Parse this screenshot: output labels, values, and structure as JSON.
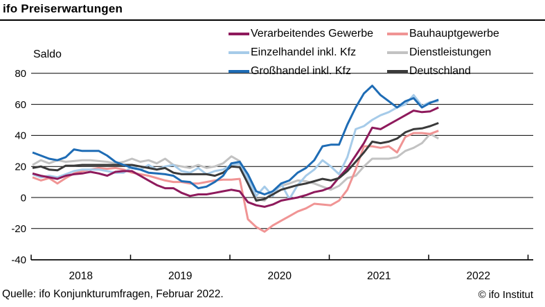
{
  "header": {
    "title": "ifo Preiserwartungen"
  },
  "axes": {
    "y_axis_label": "Saldo",
    "y_ticks": [
      80,
      60,
      40,
      20,
      0,
      -20,
      -40
    ],
    "x_ticks": [
      "2018",
      "2019",
      "2020",
      "2021",
      "2022"
    ]
  },
  "footer": {
    "source": "Quelle: ifo Konjunkturumfragen, Februar 2022.",
    "copyright": "© ifo Institut"
  },
  "chart_data": {
    "type": "line",
    "title": "ifo Preiserwartungen",
    "ylabel": "Saldo",
    "ylim": [
      -40,
      80
    ],
    "grid": true,
    "legend_position": "top-right",
    "x_unit": "month",
    "x": [
      "2018-01",
      "2018-02",
      "2018-03",
      "2018-04",
      "2018-05",
      "2018-06",
      "2018-07",
      "2018-08",
      "2018-09",
      "2018-10",
      "2018-11",
      "2018-12",
      "2019-01",
      "2019-02",
      "2019-03",
      "2019-04",
      "2019-05",
      "2019-06",
      "2019-07",
      "2019-08",
      "2019-09",
      "2019-10",
      "2019-11",
      "2019-12",
      "2020-01",
      "2020-02",
      "2020-03",
      "2020-04",
      "2020-05",
      "2020-06",
      "2020-07",
      "2020-08",
      "2020-09",
      "2020-10",
      "2020-11",
      "2020-12",
      "2021-01",
      "2021-02",
      "2021-03",
      "2021-04",
      "2021-05",
      "2021-06",
      "2021-07",
      "2021-08",
      "2021-09",
      "2021-10",
      "2021-11",
      "2021-12",
      "2022-01",
      "2022-02"
    ],
    "series": [
      {
        "name": "Dienstleistungen",
        "color": "#c2c2c2",
        "legend_order": 3,
        "values": [
          21,
          24,
          22,
          24,
          23,
          23.5,
          24,
          24,
          23.5,
          23,
          22,
          23,
          25,
          23,
          24,
          22,
          25,
          21,
          20,
          19,
          21,
          19,
          20,
          22,
          26.5,
          23.5,
          13,
          -1,
          -2,
          4,
          7.5,
          9,
          11,
          10.5,
          9,
          7,
          5,
          7.5,
          12.5,
          14,
          20,
          25,
          25,
          25,
          26,
          30,
          32,
          35,
          41,
          38
        ]
      },
      {
        "name": "Bauhauptgewerbe",
        "color": "#f09494",
        "legend_order": 1,
        "values": [
          13,
          11,
          12.5,
          9,
          12.5,
          15.5,
          17,
          18,
          19,
          18.5,
          19,
          18,
          16,
          15,
          14,
          12.5,
          11,
          10,
          10,
          9,
          9,
          10,
          11,
          11.5,
          11.5,
          12,
          -14,
          -19,
          -22,
          -18,
          -15,
          -12,
          -9,
          -7,
          -4,
          -4.5,
          -5,
          -2,
          5,
          18,
          33,
          33,
          32,
          33,
          29,
          39,
          41.5,
          41.5,
          41,
          43
        ]
      },
      {
        "name": "Einzelhandel inkl. Kfz",
        "color": "#a6cbe9",
        "legend_order": 2,
        "values": [
          15,
          13,
          14,
          13,
          15,
          17,
          18,
          18,
          18,
          17,
          16,
          16,
          20,
          18,
          21,
          18,
          20,
          21,
          17,
          16,
          19,
          15,
          17,
          18,
          21,
          21.5,
          12,
          1,
          7,
          1,
          9,
          -1,
          8,
          14,
          18,
          24,
          20,
          15,
          26,
          44,
          46,
          50,
          53,
          55,
          58,
          60,
          66,
          59,
          61.5,
          62
        ]
      },
      {
        "name": "Verarbeitendes Gewerbe",
        "color": "#8e1a5c",
        "legend_order": 0,
        "values": [
          15.5,
          14,
          13,
          12,
          14,
          15,
          15.5,
          16.5,
          15.5,
          14,
          16.5,
          17,
          17,
          14,
          11,
          8,
          6,
          6,
          3,
          1,
          2,
          2,
          3,
          4,
          5,
          4,
          -3,
          -5,
          -6,
          -4.5,
          -2,
          -1,
          0,
          1.5,
          3.5,
          4.5,
          6.5,
          13,
          19,
          27,
          35,
          45,
          44,
          47,
          50,
          53,
          56,
          55,
          55.5,
          58
        ]
      },
      {
        "name": "Deutschland",
        "color": "#3a3a3a",
        "legend_order": 5,
        "values": [
          19,
          20,
          18,
          17.5,
          20.5,
          20.5,
          21,
          21,
          21,
          21,
          21,
          21,
          21,
          20,
          19,
          18,
          19,
          16,
          15,
          15,
          15,
          15,
          14,
          16,
          20,
          19.5,
          9,
          -2,
          -1,
          2,
          5,
          6.5,
          8,
          9,
          10.5,
          12,
          11,
          12.5,
          17,
          23,
          29,
          36,
          35,
          36,
          38,
          42,
          44,
          44.5,
          46,
          48
        ]
      },
      {
        "name": "Großhandel inkl. Kfz",
        "color": "#1e6cb5",
        "legend_order": 4,
        "values": [
          29,
          27,
          25,
          24,
          26,
          31,
          30,
          30,
          30,
          27,
          23,
          21,
          19,
          18,
          16,
          15.5,
          15,
          14,
          10.5,
          10,
          6,
          7,
          10,
          14,
          22,
          23,
          15,
          4,
          2,
          4,
          9,
          11,
          16,
          19,
          24,
          33,
          34,
          34,
          47,
          58,
          67,
          72,
          66,
          62,
          58,
          62,
          64,
          58,
          61,
          63
        ]
      }
    ]
  }
}
